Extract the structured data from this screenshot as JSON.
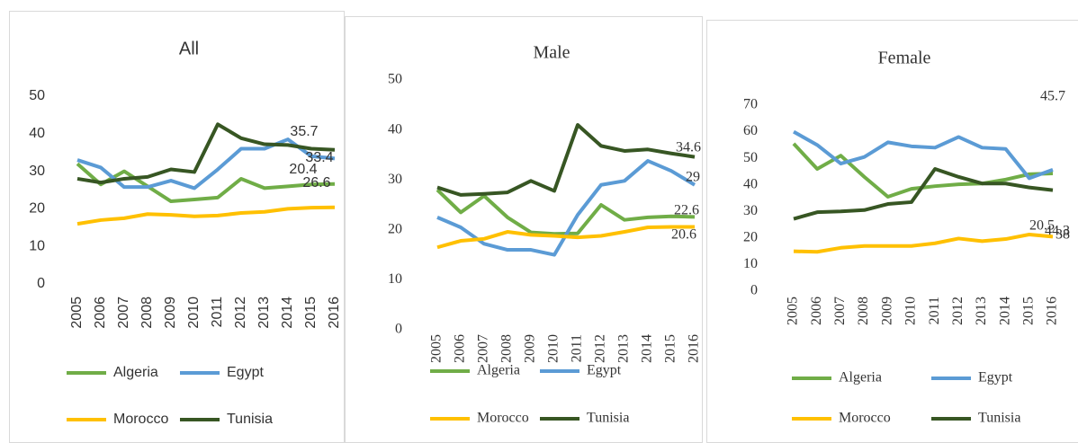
{
  "chart_data": [
    {
      "type": "line",
      "title": "All",
      "x": [
        "2005",
        "2006",
        "2007",
        "2008",
        "2009",
        "2010",
        "2011",
        "2012",
        "2013",
        "2014",
        "2015",
        "2016"
      ],
      "ylim": [
        0,
        50
      ],
      "yticks": [
        0,
        10,
        20,
        30,
        40,
        50
      ],
      "series": [
        {
          "name": "Algeria",
          "color": "#70ad47",
          "values": [
            32,
            26.5,
            30,
            26,
            22,
            22.5,
            23,
            28,
            25.5,
            26,
            26.5,
            26.6
          ]
        },
        {
          "name": "Egypt",
          "color": "#5b9bd5",
          "values": [
            33,
            31,
            25.8,
            25.8,
            27.5,
            25.5,
            30.5,
            36,
            36,
            38.5,
            34,
            33.4
          ]
        },
        {
          "name": "Morocco",
          "color": "#ffc000",
          "values": [
            16,
            17,
            17.5,
            18.6,
            18.4,
            18,
            18.2,
            18.9,
            19.2,
            20,
            20.3,
            20.4
          ]
        },
        {
          "name": "Tunisia",
          "color": "#375623",
          "values": [
            28,
            27,
            28,
            28.5,
            30.5,
            29.8,
            42.5,
            38.8,
            37.2,
            37,
            36,
            35.7
          ]
        }
      ]
    },
    {
      "type": "line",
      "title": "Male",
      "x": [
        "2005",
        "2006",
        "2007",
        "2008",
        "2009",
        "2010",
        "2011",
        "2012",
        "2013",
        "2014",
        "2015",
        "2016"
      ],
      "ylim": [
        0,
        50
      ],
      "yticks": [
        0,
        10,
        20,
        30,
        40,
        50
      ],
      "series": [
        {
          "name": "Algeria",
          "color": "#70ad47",
          "values": [
            28,
            23.5,
            26.8,
            22.5,
            19.5,
            19.2,
            19.3,
            25,
            22,
            22.5,
            22.7,
            22.6
          ]
        },
        {
          "name": "Egypt",
          "color": "#5b9bd5",
          "values": [
            22.5,
            20.5,
            17.2,
            16,
            16,
            15,
            23,
            29,
            29.8,
            33.8,
            31.8,
            29
          ]
        },
        {
          "name": "Morocco",
          "color": "#ffc000",
          "values": [
            16.5,
            17.8,
            18.2,
            19.6,
            19,
            18.8,
            18.5,
            18.8,
            19.6,
            20.5,
            20.6,
            20.6
          ]
        },
        {
          "name": "Tunisia",
          "color": "#375623",
          "values": [
            28.5,
            27,
            27.2,
            27.5,
            29.8,
            27.8,
            41,
            36.8,
            35.8,
            36.1,
            35.3,
            34.6
          ]
        }
      ]
    },
    {
      "type": "line",
      "title": "Female",
      "x": [
        "2005",
        "2006",
        "2007",
        "2008",
        "2009",
        "2010",
        "2011",
        "2012",
        "2013",
        "2014",
        "2015",
        "2016"
      ],
      "ylim": [
        0,
        70
      ],
      "yticks": [
        0,
        10,
        20,
        30,
        40,
        50,
        60,
        70
      ],
      "series": [
        {
          "name": "Algeria",
          "color": "#70ad47",
          "values": [
            55.5,
            46,
            51,
            43,
            35.5,
            38.5,
            39.5,
            40.2,
            40.5,
            42,
            44,
            44.3
          ]
        },
        {
          "name": "Egypt",
          "color": "#5b9bd5",
          "values": [
            60,
            55,
            48,
            50.5,
            56,
            54.5,
            54,
            58,
            54,
            53.5,
            42.5,
            45.7
          ]
        },
        {
          "name": "Morocco",
          "color": "#ffc000",
          "values": [
            15,
            14.8,
            16.3,
            17,
            17,
            17,
            18,
            19.8,
            18.8,
            19.6,
            21.3,
            20.5
          ]
        },
        {
          "name": "Tunisia",
          "color": "#375623",
          "values": [
            27.2,
            29.7,
            30,
            30.5,
            32.8,
            33.5,
            46,
            43,
            40.5,
            40.5,
            39,
            38
          ]
        }
      ]
    }
  ]
}
